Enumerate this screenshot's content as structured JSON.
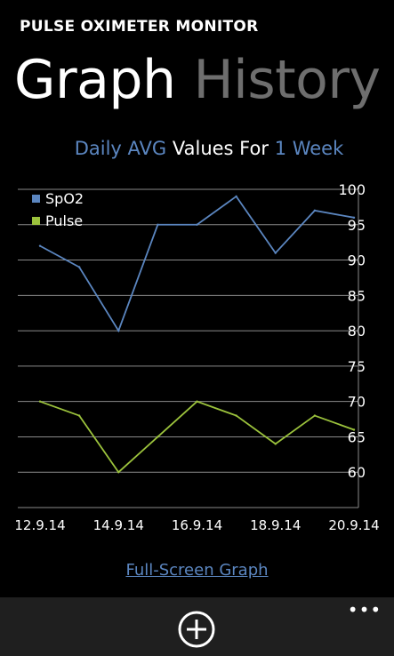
{
  "app": {
    "title": "PULSE OXIMETER MONITOR"
  },
  "pivot": {
    "items": [
      "Graph",
      "History"
    ],
    "selected": "Graph"
  },
  "subtitle": {
    "part1": "Daily AVG",
    "part2": "Values For",
    "part3": "1 Week"
  },
  "chart_data": {
    "type": "line",
    "title": "",
    "xlabel": "",
    "ylabel": "",
    "x_tick_labels": [
      "12.9.14",
      "14.9.14",
      "16.9.14",
      "18.9.14",
      "20.9.14"
    ],
    "x": [
      "12.9.14",
      "13.9.14",
      "14.9.14",
      "15.9.14",
      "16.9.14",
      "17.9.14",
      "18.9.14",
      "19.9.14",
      "20.9.14"
    ],
    "ylim": [
      55,
      100
    ],
    "yticks": [
      60,
      65,
      70,
      75,
      80,
      85,
      90,
      95,
      100
    ],
    "grid": true,
    "legend": "top-left",
    "series": [
      {
        "name": "SpO2",
        "color": "#5b86c0",
        "values": [
          92,
          89,
          80,
          95,
          95,
          99,
          91,
          97,
          96
        ]
      },
      {
        "name": "Pulse",
        "color": "#9bc23c",
        "values": [
          70,
          68,
          60,
          65,
          70,
          68,
          64,
          68,
          66
        ]
      }
    ]
  },
  "footer": {
    "link": "Full-Screen Graph"
  },
  "appbar": {
    "add_icon": "add-circle-icon",
    "more_label": "•••"
  }
}
